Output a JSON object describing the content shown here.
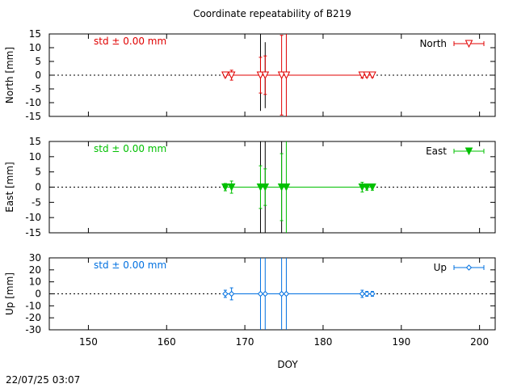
{
  "title": "Coordinate repeatability of B219",
  "timestamp": "22/07/25 03:07",
  "xlabel": "DOY",
  "xlim": [
    145,
    202
  ],
  "xticks": [
    150,
    160,
    170,
    180,
    190,
    200
  ],
  "zero_line_style": "dotted",
  "chart_data": [
    {
      "type": "scatter",
      "ylabel": "North [mm]",
      "ylim": [
        -15,
        15
      ],
      "yticks": [
        -15,
        -10,
        -5,
        0,
        5,
        10,
        15
      ],
      "std_text": "std ± 0.00 mm",
      "color": "#e00000",
      "legend": {
        "label": "North",
        "marker": "triangle-down-open",
        "position": "top-right"
      },
      "series": [
        {
          "name": "North",
          "points": [
            {
              "x": 167.5,
              "y": 0.0,
              "err": 0.6
            },
            {
              "x": 168.3,
              "y": 0.0,
              "err": 1.8
            },
            {
              "x": 172.0,
              "y": 0.0,
              "err": 6.5
            },
            {
              "x": 172.6,
              "y": 0.0,
              "err": 7.0
            },
            {
              "x": 174.7,
              "y": 0.0,
              "err": 14.5
            },
            {
              "x": 175.3,
              "y": 0.0,
              "err": 30
            },
            {
              "x": 185.0,
              "y": 0.0,
              "err": 1.0
            },
            {
              "x": 185.6,
              "y": 0.0,
              "err": 0.7
            },
            {
              "x": 186.3,
              "y": 0.0,
              "err": 0.7
            }
          ]
        }
      ],
      "black_lines": [
        {
          "x": 172.0,
          "y1": -13,
          "y2": 16
        },
        {
          "x": 172.6,
          "y1": -12,
          "y2": 12
        }
      ]
    },
    {
      "type": "scatter",
      "ylabel": "East [mm]",
      "ylim": [
        -15,
        15
      ],
      "yticks": [
        -15,
        -10,
        -5,
        0,
        5,
        10,
        15
      ],
      "std_text": "std ± 0.00 mm",
      "color": "#00c000",
      "legend": {
        "label": "East",
        "marker": "triangle-down-filled",
        "position": "top-right"
      },
      "series": [
        {
          "name": "East",
          "points": [
            {
              "x": 167.5,
              "y": 0.0,
              "err": 1.2
            },
            {
              "x": 168.3,
              "y": 0.0,
              "err": 2.0
            },
            {
              "x": 172.0,
              "y": 0.0,
              "err": 7.0
            },
            {
              "x": 172.6,
              "y": 0.0,
              "err": 6.0
            },
            {
              "x": 174.7,
              "y": 0.0,
              "err": 11.0
            },
            {
              "x": 175.3,
              "y": 0.0,
              "err": 30
            },
            {
              "x": 185.0,
              "y": 0.0,
              "err": 1.6
            },
            {
              "x": 185.6,
              "y": 0.0,
              "err": 1.0
            },
            {
              "x": 186.3,
              "y": 0.0,
              "err": 1.0
            }
          ]
        }
      ],
      "black_lines": [
        {
          "x": 172.0,
          "y1": -16,
          "y2": 16
        },
        {
          "x": 172.6,
          "y1": -16,
          "y2": 16
        },
        {
          "x": 174.7,
          "y1": -16,
          "y2": 16
        }
      ]
    },
    {
      "type": "scatter",
      "ylabel": "Up [mm]",
      "ylim": [
        -30,
        30
      ],
      "yticks": [
        -30,
        -20,
        -10,
        0,
        10,
        20,
        30
      ],
      "std_text": "std ± 0.00 mm",
      "color": "#0070e0",
      "legend": {
        "label": "Up",
        "marker": "diamond-open",
        "position": "top-right"
      },
      "series": [
        {
          "name": "Up",
          "points": [
            {
              "x": 167.5,
              "y": 0.0,
              "err": 3.0
            },
            {
              "x": 168.3,
              "y": 0.0,
              "err": 5.0
            },
            {
              "x": 172.0,
              "y": 0.0,
              "err": 60
            },
            {
              "x": 172.6,
              "y": 0.0,
              "err": 60
            },
            {
              "x": 174.7,
              "y": 0.0,
              "err": 60
            },
            {
              "x": 175.3,
              "y": 0.0,
              "err": 60
            },
            {
              "x": 185.0,
              "y": 0.0,
              "err": 3.0
            },
            {
              "x": 185.6,
              "y": 0.0,
              "err": 2.0
            },
            {
              "x": 186.3,
              "y": 0.0,
              "err": 2.0
            }
          ]
        }
      ],
      "black_lines": []
    }
  ]
}
